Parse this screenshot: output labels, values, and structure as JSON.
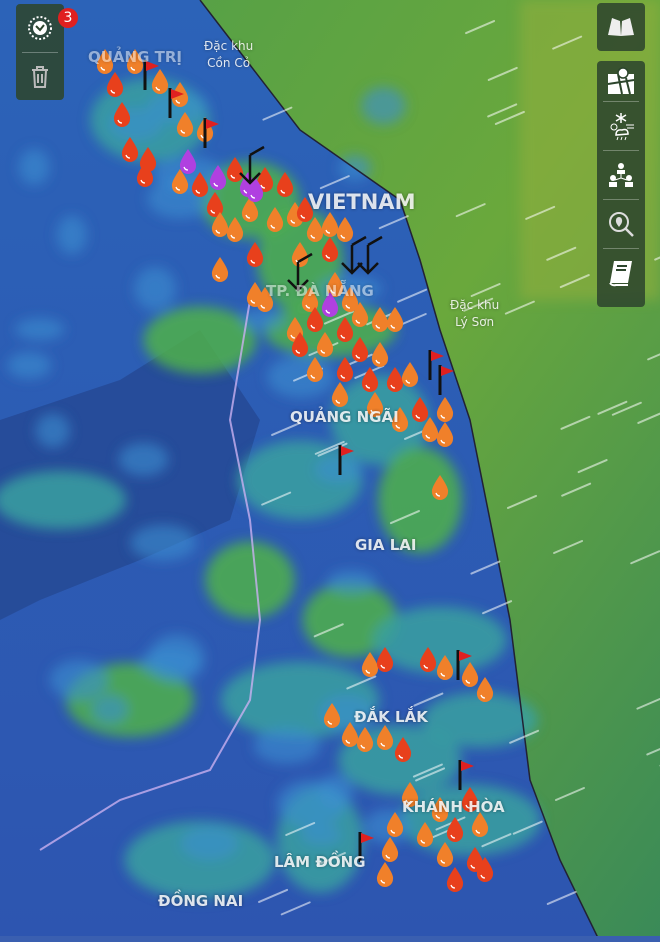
{
  "map": {
    "labels": {
      "quang_tri": "QUẢNG TRỊ",
      "con_co": "Đặc khu\nCồn Cỏ",
      "vietnam": "VIETNAM",
      "da_nang": "TP. ĐÀ NẴNG",
      "ly_son": "Đặc khu\nLý Sơn",
      "quang_ngai": "QUẢNG NGÃI",
      "gia_lai": "GIA LAI",
      "dak_lak": "ĐẮK LẮK",
      "khanh_hoa": "KHÁNH HÒA",
      "lam_dong": "LÂM ĐỒNG",
      "dong_nai": "ĐỒNG NAI"
    },
    "marker_colors": {
      "orange_drop": "#f0802a",
      "red_drop": "#e8401c",
      "purple_drop": "#b040e0",
      "flag": "#e02020"
    }
  },
  "left_toolbar": {
    "notification_count": "3",
    "icons": [
      "layers-filter-icon",
      "trash-icon"
    ]
  },
  "right_toolbar": {
    "icons": [
      "map-book-icon",
      "map-pin-icon",
      "weather-icon",
      "organization-icon",
      "location-search-icon",
      "book-icon"
    ]
  }
}
